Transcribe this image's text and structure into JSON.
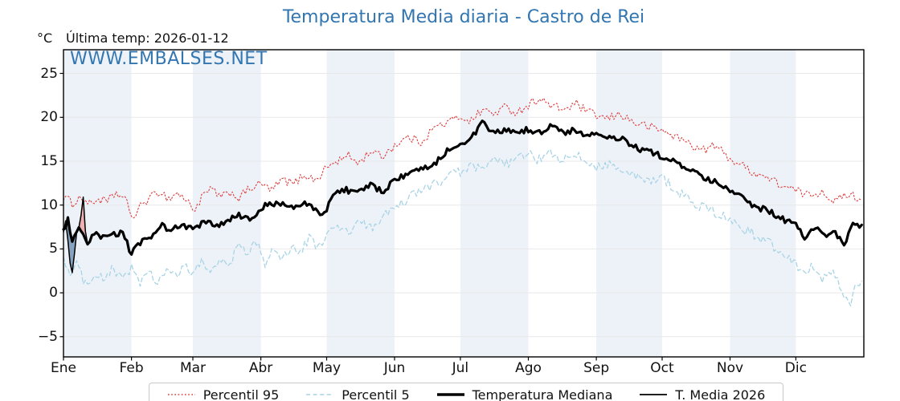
{
  "header": {
    "title": "Temperatura Media diaria - Castro de Rei",
    "title_color": "#3276b1",
    "unit_label": "°C",
    "last_temp_label": "Última temp: 2026-01-12",
    "watermark": "WWW.EMBALSES.NET",
    "watermark_color": "#3276b1"
  },
  "legend": {
    "items": [
      {
        "label": "Percentil 95"
      },
      {
        "label": "Percentil 5"
      },
      {
        "label": "Temperatura Mediana"
      },
      {
        "label": "T. Media 2026"
      }
    ]
  },
  "chart_data": {
    "type": "line",
    "title": "Temperatura Media diaria - Castro de Rei",
    "xlabel": "",
    "ylabel": "°C",
    "x_tick_labels": [
      "Ene",
      "Feb",
      "Mar",
      "Abr",
      "May",
      "Jun",
      "Jul",
      "Ago",
      "Sep",
      "Oct",
      "Nov",
      "Dic"
    ],
    "month_start_days": [
      0,
      31,
      59,
      90,
      120,
      151,
      181,
      212,
      243,
      273,
      304,
      334,
      365
    ],
    "y_tick_values": [
      -5,
      0,
      5,
      10,
      15,
      20,
      25
    ],
    "y_tick_labels": [
      "−5",
      "0",
      "5",
      "10",
      "15",
      "20",
      "25"
    ],
    "ylim": [
      -7.3,
      27.7
    ],
    "xlim_days": [
      0,
      365
    ],
    "grid": "horizontal",
    "band_color": "#edf2f8",
    "grid_color": "#e8e8e8",
    "axis_color": "#000000",
    "legend_position": "bottom-center",
    "fill_above_color": "#f0a8a8",
    "fill_below_color": "#7b9cbd",
    "series": [
      {
        "name": "Percentil 95",
        "color": "#df3b3b",
        "style": "dotted",
        "width": 1.1,
        "jitter": 0.5,
        "points": [
          [
            0,
            11.0
          ],
          [
            4,
            10.2
          ],
          [
            8,
            10.9
          ],
          [
            12,
            10.1
          ],
          [
            16,
            10.7
          ],
          [
            20,
            10.3
          ],
          [
            24,
            11.4
          ],
          [
            28,
            10.6
          ],
          [
            32,
            8.5
          ],
          [
            36,
            10.2
          ],
          [
            40,
            10.9
          ],
          [
            44,
            11.6
          ],
          [
            48,
            10.7
          ],
          [
            52,
            11.4
          ],
          [
            56,
            10.5
          ],
          [
            60,
            9.5
          ],
          [
            64,
            11.2
          ],
          [
            68,
            11.8
          ],
          [
            72,
            10.8
          ],
          [
            76,
            11.5
          ],
          [
            80,
            10.8
          ],
          [
            85,
            11.9
          ],
          [
            90,
            12.4
          ],
          [
            95,
            11.7
          ],
          [
            100,
            12.9
          ],
          [
            105,
            12.4
          ],
          [
            110,
            13.5
          ],
          [
            115,
            12.8
          ],
          [
            120,
            14.3
          ],
          [
            125,
            15.0
          ],
          [
            130,
            15.6
          ],
          [
            135,
            14.8
          ],
          [
            140,
            16.2
          ],
          [
            145,
            15.5
          ],
          [
            151,
            16.8
          ],
          [
            157,
            17.7
          ],
          [
            163,
            17.2
          ],
          [
            169,
            18.8
          ],
          [
            175,
            19.4
          ],
          [
            181,
            20.1
          ],
          [
            186,
            19.6
          ],
          [
            191,
            20.9
          ],
          [
            196,
            20.4
          ],
          [
            201,
            21.1
          ],
          [
            207,
            20.6
          ],
          [
            212,
            21.4
          ],
          [
            217,
            22.2
          ],
          [
            222,
            21.3
          ],
          [
            228,
            20.9
          ],
          [
            234,
            21.5
          ],
          [
            239,
            20.6
          ],
          [
            243,
            20.2
          ],
          [
            248,
            19.8
          ],
          [
            254,
            20.4
          ],
          [
            260,
            19.4
          ],
          [
            266,
            19.0
          ],
          [
            273,
            18.5
          ],
          [
            279,
            17.8
          ],
          [
            285,
            17.1
          ],
          [
            291,
            16.2
          ],
          [
            297,
            16.8
          ],
          [
            304,
            15.3
          ],
          [
            310,
            14.4
          ],
          [
            316,
            13.6
          ],
          [
            322,
            13.0
          ],
          [
            328,
            12.2
          ],
          [
            334,
            11.6
          ],
          [
            340,
            11.1
          ],
          [
            346,
            11.6
          ],
          [
            352,
            10.4
          ],
          [
            358,
            11.3
          ],
          [
            364,
            10.6
          ]
        ]
      },
      {
        "name": "Percentil 5",
        "color": "#a9d4e6",
        "style": "dashed",
        "width": 1.3,
        "jitter": 0.6,
        "points": [
          [
            0,
            4.3
          ],
          [
            3,
            1.9
          ],
          [
            6,
            3.3
          ],
          [
            10,
            0.9
          ],
          [
            14,
            2.4
          ],
          [
            18,
            1.4
          ],
          [
            22,
            2.7
          ],
          [
            26,
            1.6
          ],
          [
            31,
            2.9
          ],
          [
            35,
            1.2
          ],
          [
            39,
            2.2
          ],
          [
            43,
            1.0
          ],
          [
            47,
            2.8
          ],
          [
            51,
            1.7
          ],
          [
            55,
            3.0
          ],
          [
            59,
            2.2
          ],
          [
            63,
            3.5
          ],
          [
            67,
            2.4
          ],
          [
            71,
            3.9
          ],
          [
            75,
            2.8
          ],
          [
            80,
            5.6
          ],
          [
            84,
            4.2
          ],
          [
            88,
            5.9
          ],
          [
            92,
            3.4
          ],
          [
            96,
            4.8
          ],
          [
            100,
            4.1
          ],
          [
            104,
            5.3
          ],
          [
            108,
            4.4
          ],
          [
            112,
            6.3
          ],
          [
            116,
            5.1
          ],
          [
            120,
            6.6
          ],
          [
            125,
            7.5
          ],
          [
            130,
            6.8
          ],
          [
            135,
            8.1
          ],
          [
            140,
            7.3
          ],
          [
            145,
            8.6
          ],
          [
            151,
            9.4
          ],
          [
            157,
            10.8
          ],
          [
            163,
            11.6
          ],
          [
            169,
            12.4
          ],
          [
            175,
            13.1
          ],
          [
            181,
            13.8
          ],
          [
            186,
            14.4
          ],
          [
            191,
            13.9
          ],
          [
            196,
            15.1
          ],
          [
            201,
            14.6
          ],
          [
            207,
            15.3
          ],
          [
            212,
            15.7
          ],
          [
            217,
            15.2
          ],
          [
            222,
            15.8
          ],
          [
            228,
            15.1
          ],
          [
            234,
            15.6
          ],
          [
            239,
            14.9
          ],
          [
            243,
            14.4
          ],
          [
            248,
            14.8
          ],
          [
            254,
            13.9
          ],
          [
            260,
            13.3
          ],
          [
            266,
            12.7
          ],
          [
            273,
            13.1
          ],
          [
            279,
            11.9
          ],
          [
            285,
            10.6
          ],
          [
            291,
            9.8
          ],
          [
            297,
            9.1
          ],
          [
            304,
            8.4
          ],
          [
            310,
            7.3
          ],
          [
            316,
            6.5
          ],
          [
            322,
            5.6
          ],
          [
            328,
            4.6
          ],
          [
            334,
            3.4
          ],
          [
            338,
            2.2
          ],
          [
            342,
            3.1
          ],
          [
            346,
            1.5
          ],
          [
            350,
            2.4
          ],
          [
            354,
            0.8
          ],
          [
            358,
            -1.6
          ],
          [
            361,
            0.3
          ],
          [
            364,
            0.8
          ]
        ]
      },
      {
        "name": "Temperatura Mediana",
        "color": "#000000",
        "style": "solid",
        "width": 3.2,
        "jitter": 0.35,
        "points": [
          [
            0,
            7.0
          ],
          [
            2,
            8.3
          ],
          [
            4,
            5.9
          ],
          [
            7,
            7.1
          ],
          [
            9,
            6.5
          ],
          [
            11,
            5.4
          ],
          [
            14,
            6.7
          ],
          [
            18,
            6.2
          ],
          [
            22,
            6.6
          ],
          [
            27,
            6.9
          ],
          [
            31,
            4.4
          ],
          [
            35,
            5.7
          ],
          [
            40,
            6.3
          ],
          [
            44,
            7.8
          ],
          [
            49,
            7.1
          ],
          [
            54,
            7.7
          ],
          [
            59,
            7.3
          ],
          [
            65,
            8.1
          ],
          [
            70,
            7.5
          ],
          [
            75,
            8.2
          ],
          [
            80,
            8.8
          ],
          [
            86,
            8.3
          ],
          [
            92,
            9.9
          ],
          [
            98,
            10.4
          ],
          [
            104,
            9.6
          ],
          [
            110,
            10.2
          ],
          [
            116,
            9.3
          ],
          [
            119,
            8.9
          ],
          [
            123,
            11.3
          ],
          [
            128,
            11.8
          ],
          [
            134,
            11.4
          ],
          [
            140,
            12.2
          ],
          [
            146,
            11.6
          ],
          [
            151,
            12.9
          ],
          [
            157,
            13.4
          ],
          [
            163,
            14.1
          ],
          [
            169,
            14.7
          ],
          [
            175,
            16.2
          ],
          [
            181,
            17.1
          ],
          [
            186,
            17.6
          ],
          [
            191,
            19.3
          ],
          [
            196,
            18.2
          ],
          [
            201,
            18.5
          ],
          [
            207,
            18.3
          ],
          [
            212,
            18.6
          ],
          [
            217,
            18.2
          ],
          [
            222,
            19.0
          ],
          [
            228,
            18.3
          ],
          [
            234,
            18.5
          ],
          [
            239,
            17.9
          ],
          [
            243,
            18.1
          ],
          [
            248,
            17.5
          ],
          [
            254,
            17.7
          ],
          [
            260,
            16.6
          ],
          [
            266,
            16.1
          ],
          [
            273,
            15.6
          ],
          [
            279,
            14.8
          ],
          [
            285,
            14.2
          ],
          [
            291,
            13.1
          ],
          [
            297,
            12.6
          ],
          [
            304,
            11.6
          ],
          [
            310,
            10.7
          ],
          [
            316,
            9.8
          ],
          [
            322,
            9.3
          ],
          [
            328,
            8.4
          ],
          [
            334,
            7.7
          ],
          [
            338,
            6.4
          ],
          [
            343,
            7.4
          ],
          [
            348,
            6.1
          ],
          [
            352,
            7.0
          ],
          [
            356,
            5.3
          ],
          [
            360,
            7.9
          ],
          [
            364,
            7.6
          ]
        ]
      },
      {
        "name": "T. Media 2026",
        "color": "#000000",
        "style": "solid",
        "width": 1.5,
        "jitter": 0,
        "days": [
          0,
          1,
          2,
          3,
          4,
          5,
          6,
          7,
          8,
          9,
          10,
          11
        ],
        "values": [
          6.9,
          8.2,
          6.0,
          3.4,
          2.3,
          4.4,
          6.9,
          7.4,
          8.8,
          10.9,
          7.0,
          5.6
        ]
      }
    ]
  }
}
